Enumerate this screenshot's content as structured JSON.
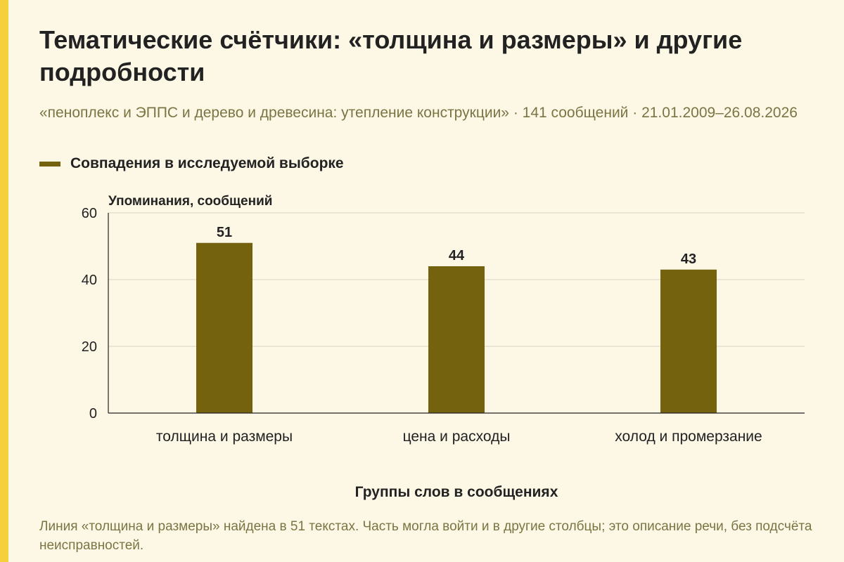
{
  "title": "Тематические счётчики: «толщина и размеры» и другие подробности",
  "subtitle": "«пеноплекс и ЭППС и дерево и древесина: утепление конструкции» · 141 сообщений · 21.01.2009–26.08.2026",
  "legend": {
    "label": "Совпадения в исследуемой выборке",
    "placement": "top-left"
  },
  "colors": {
    "bar": "#75620E",
    "accent": "#F5D03B",
    "background": "#FDF8E6",
    "muted_text": "#7B7443"
  },
  "footnote": "Линия «толщина и размеры» найдена в 51 текстах. Часть могла войти и в другие столбцы; это описание речи, без подсчёта неисправностей.",
  "chart_data": {
    "type": "bar",
    "categories": [
      "толщина и размеры",
      "цена и расходы",
      "холод и промерзание"
    ],
    "series": [
      {
        "name": "Совпадения в исследуемой выборке",
        "values": [
          51,
          44,
          43
        ]
      }
    ],
    "ylabel": "Упоминания, сообщений",
    "xlabel": "Группы слов в сообщениях",
    "ylim": [
      0,
      60
    ],
    "yticks": [
      0,
      20,
      40,
      60
    ],
    "grid": true,
    "data_labels": true
  }
}
